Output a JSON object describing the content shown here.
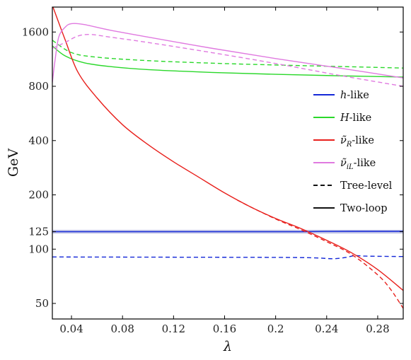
{
  "chart_data": {
    "type": "line",
    "xlabel": "λ",
    "ylabel": "GeV",
    "x_scale": "linear",
    "y_scale": "log",
    "xlim": [
      0.025,
      0.3
    ],
    "ylim": [
      41,
      2200
    ],
    "x_ticks": [
      0.04,
      0.08,
      0.12,
      0.16,
      0.2,
      0.24,
      0.28
    ],
    "x_tick_labels": [
      "0.04",
      "0.08",
      "0.12",
      "0.16",
      "0.2",
      "0.24",
      "0.28"
    ],
    "y_ticks": [
      50,
      100,
      125,
      200,
      400,
      800,
      1600
    ],
    "y_tick_labels": [
      "50",
      "100",
      "125",
      "200",
      "400",
      "800",
      "1600"
    ],
    "grid": false,
    "legend_position": "right",
    "reference_band": {
      "value": 125,
      "color": "#8a8fcf"
    },
    "colors": {
      "h": "#1428d8",
      "H": "#2ad82a",
      "nuR": "#e8201c",
      "nuiL": "#e07ae0",
      "legend_line": "#111111"
    },
    "legend": [
      {
        "math": "h",
        "suffix": "-like",
        "color": "#1428d8",
        "style": "solid"
      },
      {
        "math": "H",
        "suffix": "-like",
        "color": "#2ad82a",
        "style": "solid"
      },
      {
        "math": "ν̃",
        "sub": "R",
        "suffix": "-like",
        "color": "#e8201c",
        "style": "solid"
      },
      {
        "math": "ν̃",
        "sub": "iL",
        "suffix": "-like",
        "color": "#e07ae0",
        "style": "solid"
      },
      {
        "label": "Tree-level",
        "color": "#111111",
        "style": "dashed"
      },
      {
        "label": "Two-loop",
        "color": "#111111",
        "style": "solid"
      }
    ],
    "series": [
      {
        "key": "h",
        "level": "two-loop",
        "style": "solid",
        "color": "#1428d8",
        "points": [
          [
            0.025,
            125
          ],
          [
            0.1,
            125
          ],
          [
            0.2,
            125
          ],
          [
            0.22,
            125
          ],
          [
            0.24,
            125.4
          ],
          [
            0.27,
            125.5
          ],
          [
            0.3,
            125.5
          ]
        ]
      },
      {
        "key": "h",
        "level": "tree",
        "style": "dashed",
        "color": "#1428d8",
        "points": [
          [
            0.025,
            90.5
          ],
          [
            0.1,
            90.3
          ],
          [
            0.2,
            90
          ],
          [
            0.23,
            89.5
          ],
          [
            0.245,
            88.5
          ],
          [
            0.255,
            90
          ],
          [
            0.262,
            92
          ],
          [
            0.27,
            91.5
          ],
          [
            0.285,
            91.2
          ],
          [
            0.3,
            91
          ]
        ]
      },
      {
        "key": "H",
        "level": "two-loop",
        "style": "solid",
        "color": "#2ad82a",
        "points": [
          [
            0.025,
            1340
          ],
          [
            0.035,
            1180
          ],
          [
            0.05,
            1080
          ],
          [
            0.07,
            1030
          ],
          [
            0.1,
            990
          ],
          [
            0.15,
            955
          ],
          [
            0.2,
            932
          ],
          [
            0.25,
            915
          ],
          [
            0.3,
            900
          ]
        ]
      },
      {
        "key": "H",
        "level": "tree",
        "style": "dashed",
        "color": "#2ad82a",
        "points": [
          [
            0.025,
            1440
          ],
          [
            0.04,
            1230
          ],
          [
            0.06,
            1160
          ],
          [
            0.1,
            1110
          ],
          [
            0.15,
            1075
          ],
          [
            0.2,
            1050
          ],
          [
            0.25,
            1030
          ],
          [
            0.3,
            1010
          ]
        ]
      },
      {
        "key": "nuR",
        "level": "two-loop",
        "style": "solid",
        "color": "#e8201c",
        "points": [
          [
            0.025,
            2250
          ],
          [
            0.035,
            1450
          ],
          [
            0.045,
            960
          ],
          [
            0.06,
            690
          ],
          [
            0.08,
            490
          ],
          [
            0.1,
            380
          ],
          [
            0.12,
            305
          ],
          [
            0.14,
            250
          ],
          [
            0.16,
            205
          ],
          [
            0.18,
            172
          ],
          [
            0.2,
            148
          ],
          [
            0.22,
            130
          ],
          [
            0.24,
            112
          ],
          [
            0.26,
            95
          ],
          [
            0.28,
            77
          ],
          [
            0.3,
            59
          ]
        ]
      },
      {
        "key": "nuR",
        "level": "tree",
        "style": "dashed",
        "color": "#e8201c",
        "points": [
          [
            0.17,
            187
          ],
          [
            0.18,
            172
          ],
          [
            0.2,
            147
          ],
          [
            0.22,
            128
          ],
          [
            0.24,
            110
          ],
          [
            0.26,
            93
          ],
          [
            0.28,
            72
          ],
          [
            0.29,
            60
          ],
          [
            0.3,
            47
          ]
        ]
      },
      {
        "key": "nuiL",
        "level": "two-loop",
        "style": "solid",
        "color": "#e07ae0",
        "points": [
          [
            0.025,
            840
          ],
          [
            0.027,
            1100
          ],
          [
            0.03,
            1500
          ],
          [
            0.035,
            1700
          ],
          [
            0.04,
            1780
          ],
          [
            0.05,
            1760
          ],
          [
            0.07,
            1640
          ],
          [
            0.1,
            1500
          ],
          [
            0.15,
            1300
          ],
          [
            0.2,
            1140
          ],
          [
            0.25,
            1010
          ],
          [
            0.3,
            890
          ]
        ]
      },
      {
        "key": "nuiL",
        "level": "tree",
        "style": "dashed",
        "color": "#e07ae0",
        "points": [
          [
            0.025,
            1300
          ],
          [
            0.035,
            1400
          ],
          [
            0.045,
            1520
          ],
          [
            0.055,
            1550
          ],
          [
            0.07,
            1500
          ],
          [
            0.1,
            1400
          ],
          [
            0.15,
            1230
          ],
          [
            0.2,
            1070
          ],
          [
            0.25,
            920
          ],
          [
            0.3,
            800
          ]
        ]
      }
    ]
  }
}
